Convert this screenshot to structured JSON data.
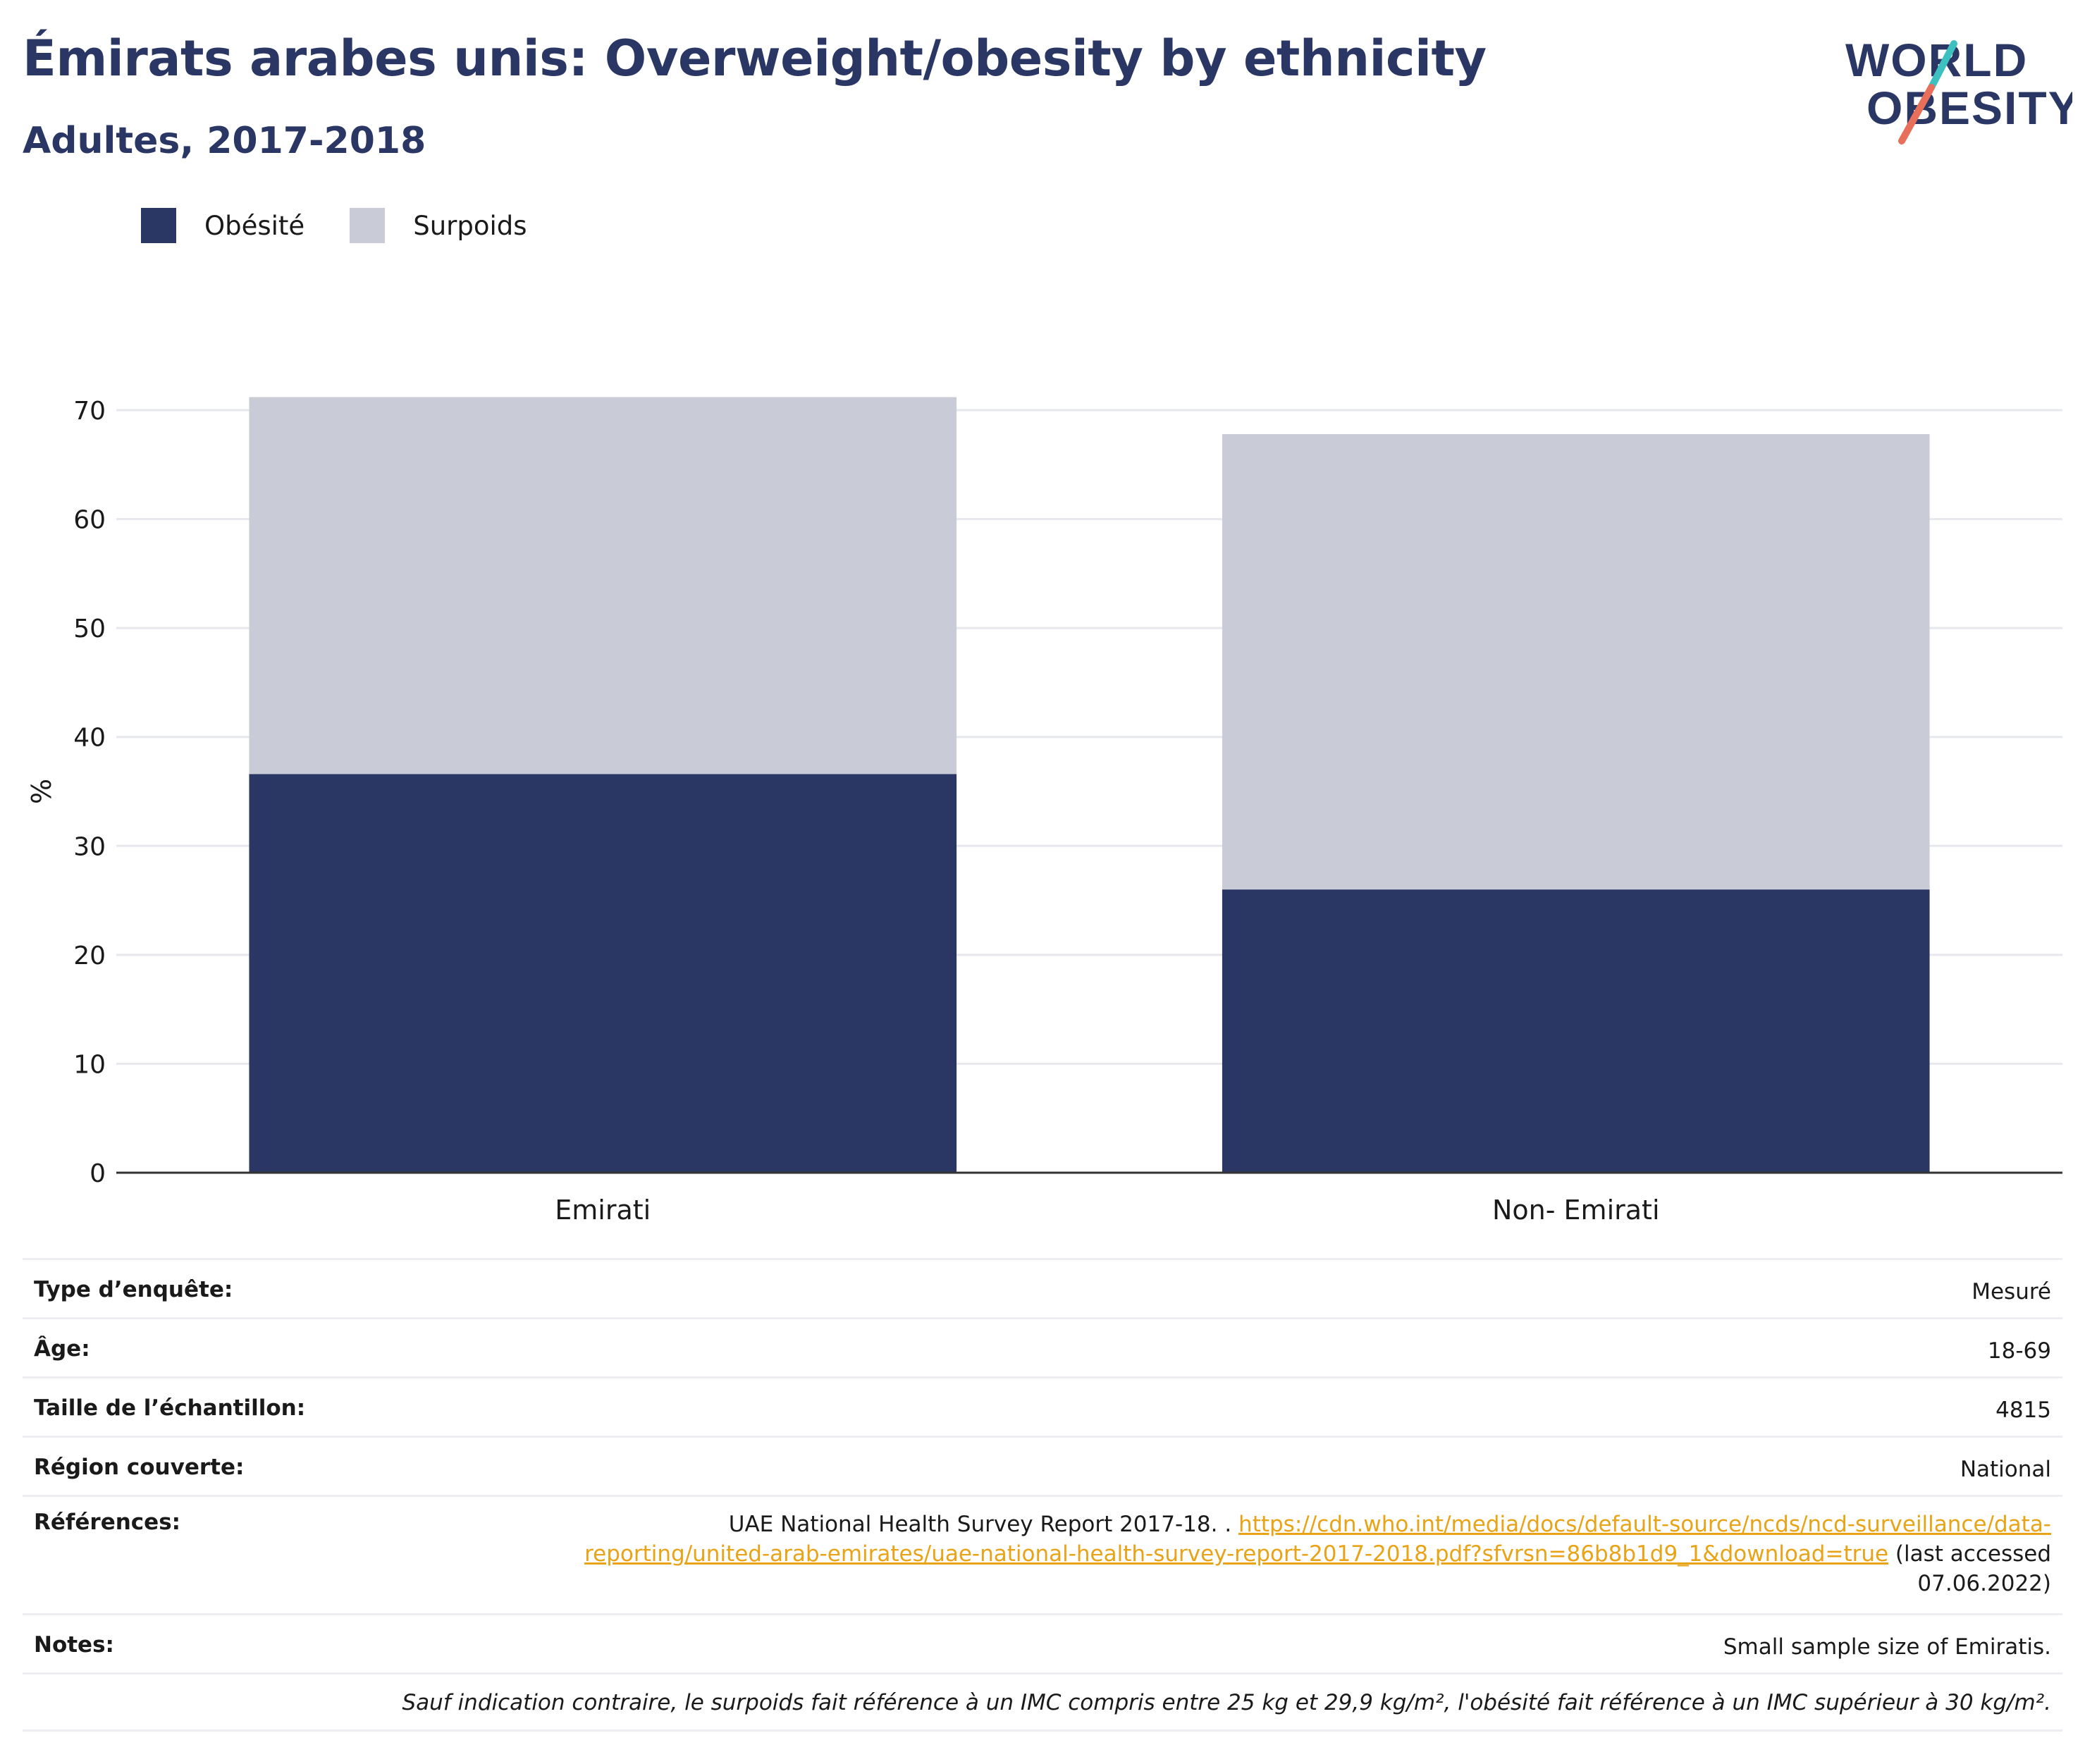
{
  "header": {
    "title": "Émirats arabes unis: Overweight/obesity by ethnicity",
    "subtitle": "Adultes, 2017-2018"
  },
  "logo": {
    "line1": "WORLD",
    "line2": "OBESITY"
  },
  "colors": {
    "obesity": "#2a3663",
    "overweight": "#c9ccd7",
    "title": "#2a3663",
    "link": "#e8a317",
    "logo_teal": "#3cc0c0",
    "logo_coral": "#e8705a"
  },
  "chart_data": {
    "type": "bar",
    "stacked": true,
    "categories": [
      "Emirati",
      "Non- Emirati"
    ],
    "series": [
      {
        "name": "Obésité",
        "values": [
          36.6,
          26.0
        ]
      },
      {
        "name": "Surpoids",
        "values": [
          34.6,
          41.8
        ]
      }
    ],
    "totals": [
      71.2,
      67.8
    ],
    "ylabel": "%",
    "ylim": [
      0,
      70
    ],
    "yticks": [
      "0",
      "10",
      "20",
      "30",
      "40",
      "50",
      "60",
      "70"
    ],
    "grid": true,
    "legend_position": "top-left"
  },
  "info": {
    "rows": [
      {
        "label": "Type d’enquête:",
        "value": "Mesuré"
      },
      {
        "label": "Âge:",
        "value": "18-69"
      },
      {
        "label": "Taille de l’échantillon:",
        "value": "4815"
      },
      {
        "label": "Région couverte:",
        "value": "National"
      }
    ],
    "references": {
      "label": "Références:",
      "text_before": "UAE National Health Survey Report 2017-18. .",
      "link_line1": "https://cdn.who.int/media/docs/default-source/ncds/ncd-surveillance/data-",
      "link_line2": "reporting/united-arab-emirates/uae-national-health-survey-report-2017-2018.pdf?sfvrsn=86b8b1d9_1&download=true",
      "text_after": "(last accessed",
      "date": "07.06.2022)"
    },
    "notes": {
      "label": "Notes:",
      "value": "Small sample size of Emiratis."
    },
    "footnote": "Sauf indication contraire, le surpoids fait référence à un IMC compris entre 25 kg et 29,9 kg/m², l'obésité fait référence à un IMC supérieur à 30 kg/m²."
  }
}
